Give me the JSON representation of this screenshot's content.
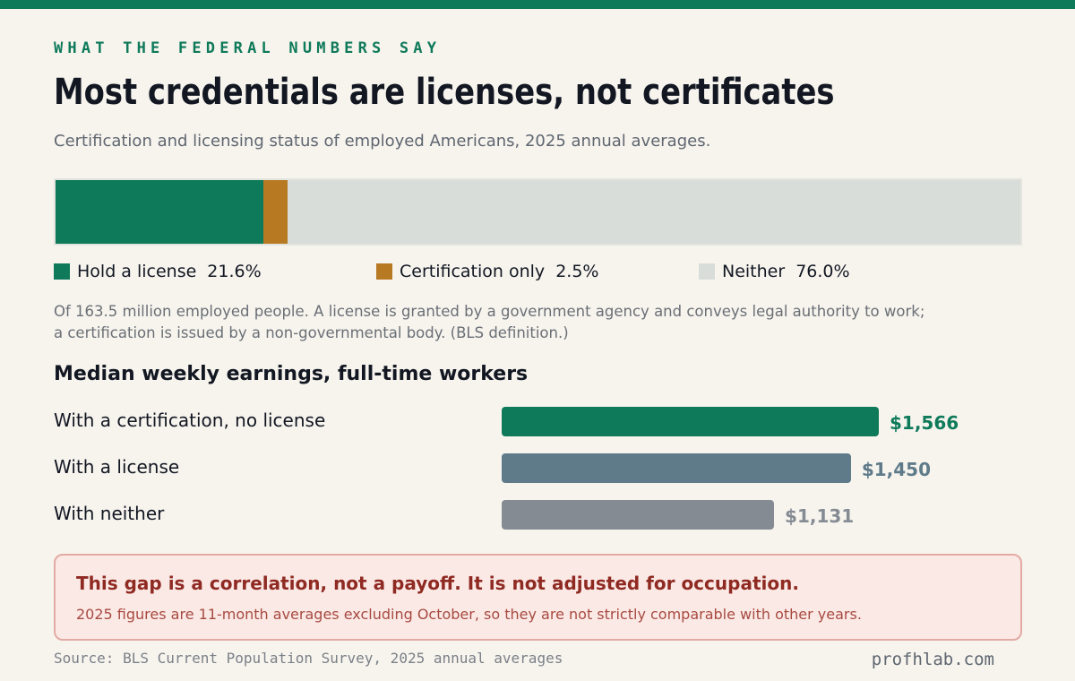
{
  "header": {
    "kicker": "WHAT THE FEDERAL NUMBERS SAY",
    "title": "Most credentials are licenses, not certificates",
    "subtitle": "Certification and licensing status of employed Americans, 2025 annual averages."
  },
  "note": {
    "line1": "Of 163.5 million employed people. A license is granted by a government agency and conveys legal authority to work;",
    "line2": "a certification is issued by a non-governmental body. (BLS definition.)"
  },
  "warning": {
    "headline": "This gap is a correlation, not a payoff. It is not adjusted for occupation.",
    "body": "2025 figures are 11-month averages excluding October, so they are not strictly comparable with other years."
  },
  "footer": {
    "source": "Source: BLS Current Population Survey, 2025 annual averages",
    "brand": "profhlab.com"
  },
  "chart_data": [
    {
      "type": "bar",
      "orientation": "horizontal-stacked",
      "categories": [
        "Hold a license",
        "Certification only",
        "Neither"
      ],
      "values": [
        21.6,
        2.5,
        76.0
      ],
      "value_labels": [
        "21.6%",
        "2.5%",
        "76.0%"
      ],
      "colors": [
        "#0e7a5a",
        "#b87923",
        "#d9ddd9"
      ],
      "legend_position": "bottom"
    },
    {
      "type": "bar",
      "orientation": "horizontal",
      "title": "Median weekly earnings, full-time workers",
      "categories": [
        "With a certification, no license",
        "With a license",
        "With neither"
      ],
      "values": [
        1566,
        1450,
        1131
      ],
      "value_labels": [
        "$1,566",
        "$1,450",
        "$1,131"
      ],
      "colors": [
        "#0e7a5a",
        "#5f7b8a",
        "#858b93"
      ],
      "value_label_colors": [
        "#0e7a5a",
        "#5f7b8a",
        "#858b93"
      ],
      "grid": false
    }
  ]
}
